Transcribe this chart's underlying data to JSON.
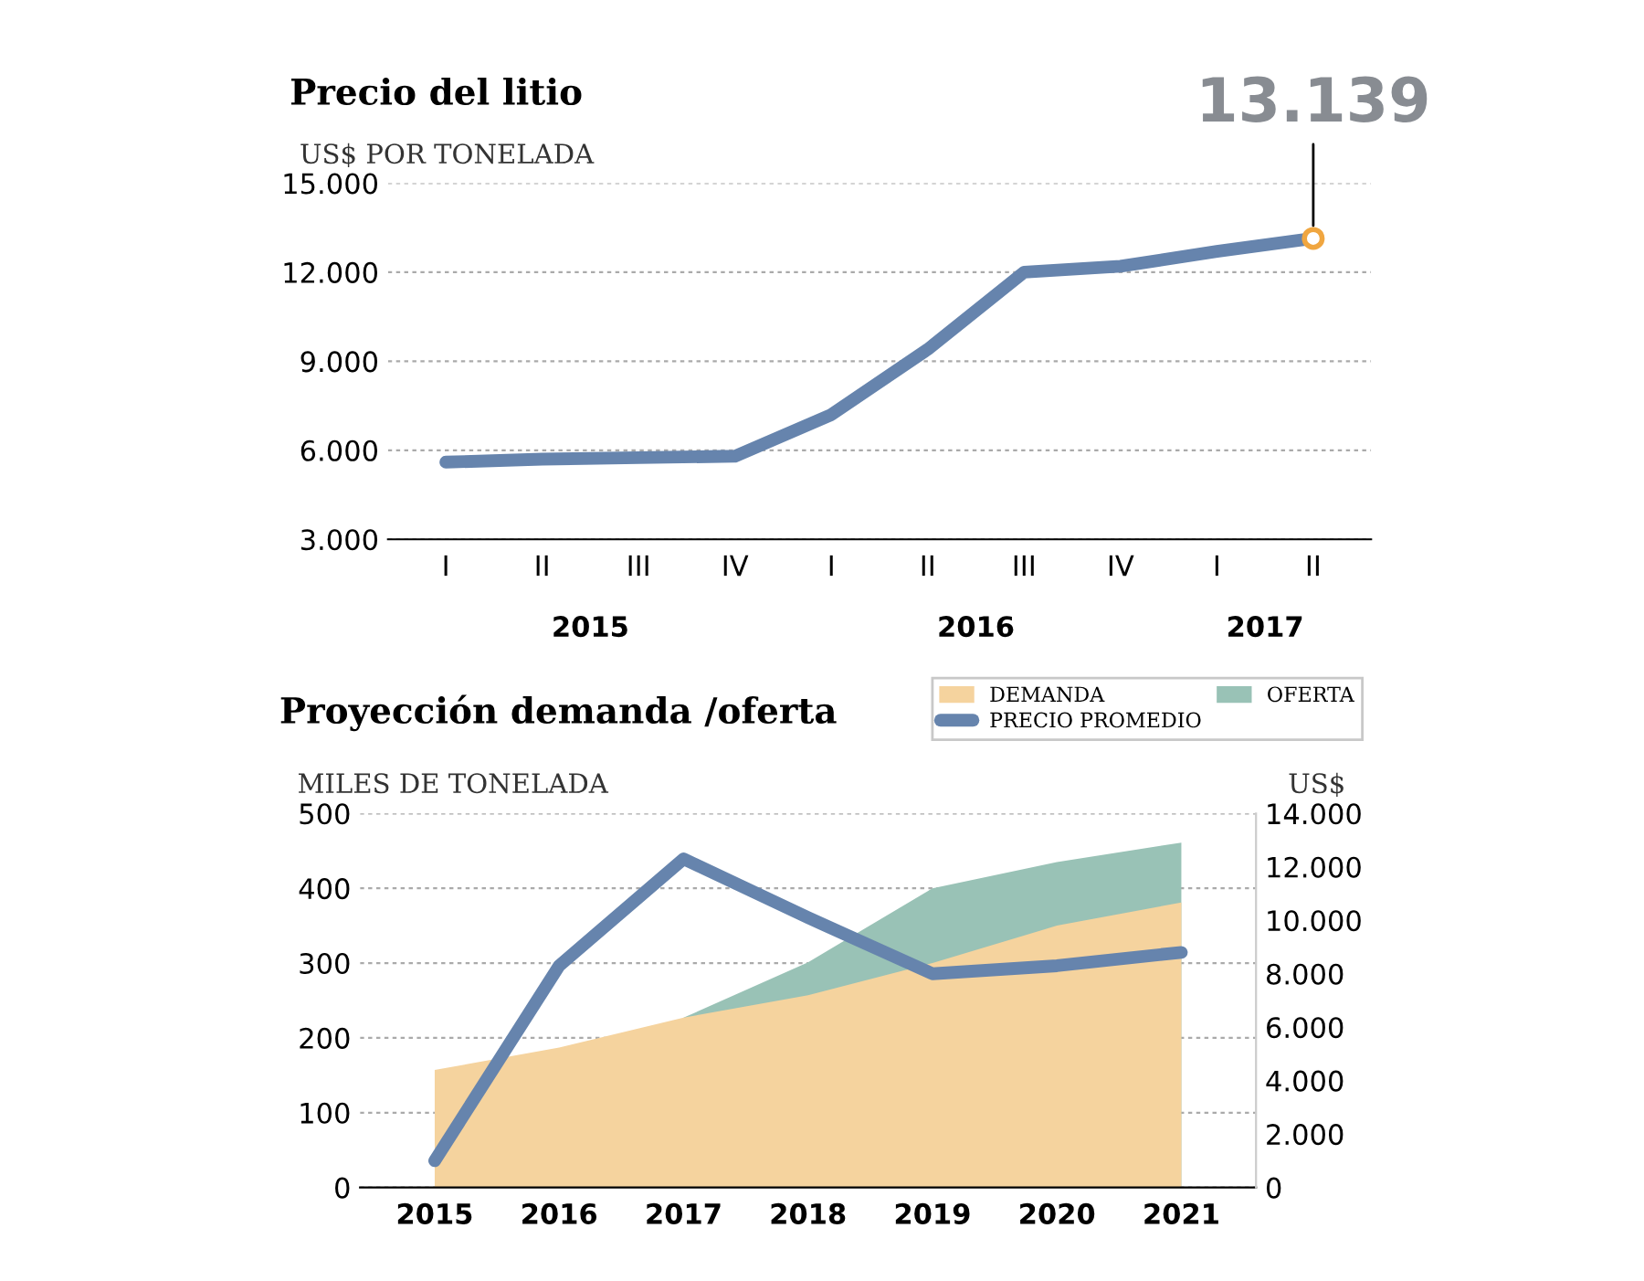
{
  "chart_data": [
    {
      "type": "line",
      "title": "Precio del litio",
      "subtitle": "US$ POR TONELADA",
      "categories": [
        "I",
        "II",
        "III",
        "IV",
        "I",
        "II",
        "III",
        "IV",
        "I",
        "II"
      ],
      "series": [
        {
          "color": "#6684ad",
          "values": [
            5600,
            5700,
            5750,
            5800,
            7200,
            9400,
            12000,
            12200,
            12700,
            13139
          ],
          "value_labels": [
            null,
            null,
            null,
            null,
            null,
            null,
            null,
            null,
            null,
            "13.139"
          ]
        }
      ],
      "annotations": [
        "2015",
        "2016",
        "2017"
      ],
      "ylim": [
        3000,
        15000
      ],
      "yticks": [
        {
          "value": 3000,
          "label": "3.000"
        },
        {
          "value": 6000,
          "label": "6.000"
        },
        {
          "value": 9000,
          "label": "9.000"
        },
        {
          "value": 12000,
          "label": "12.000"
        },
        {
          "value": 15000,
          "label": "15.000"
        }
      ],
      "grid": "y",
      "legend": false
    },
    {
      "type": "area",
      "title": "Proyección demanda /oferta",
      "ylabel": "MILES DE TONELADA",
      "y2label": "US$",
      "categories": [
        "2015",
        "2016",
        "2017",
        "2018",
        "2019",
        "2020",
        "2021"
      ],
      "series": [
        {
          "name": "DEMANDA",
          "type": "area",
          "color": "#f5d39e",
          "values": [
            157,
            187,
            227,
            257,
            300,
            350,
            381
          ]
        },
        {
          "name": "OFERTA",
          "type": "area",
          "color": "#99c2b6",
          "values": [
            null,
            null,
            227,
            301,
            400,
            435,
            461
          ]
        },
        {
          "name": "PRECIO PROMEDIO",
          "type": "line",
          "axis": "y2",
          "color": "#6684ad",
          "values": [
            1000,
            8300,
            12300,
            10100,
            8000,
            8300,
            8800
          ]
        }
      ],
      "ylim": [
        0,
        500
      ],
      "yticks": [
        0,
        100,
        200,
        300,
        400,
        500
      ],
      "y2lim": [
        0,
        14000
      ],
      "y2ticks": [
        0,
        {
          "value": 2000,
          "label": "2.000"
        },
        {
          "value": 4000,
          "label": "4.000"
        },
        {
          "value": 6000,
          "label": "6.000"
        },
        {
          "value": 8000,
          "label": "8.000"
        },
        {
          "value": 10000,
          "label": "10.000"
        },
        {
          "value": 12000,
          "label": "12.000"
        },
        {
          "value": 14000,
          "label": "14.000"
        }
      ],
      "grid": "y",
      "legend": "top right"
    }
  ]
}
